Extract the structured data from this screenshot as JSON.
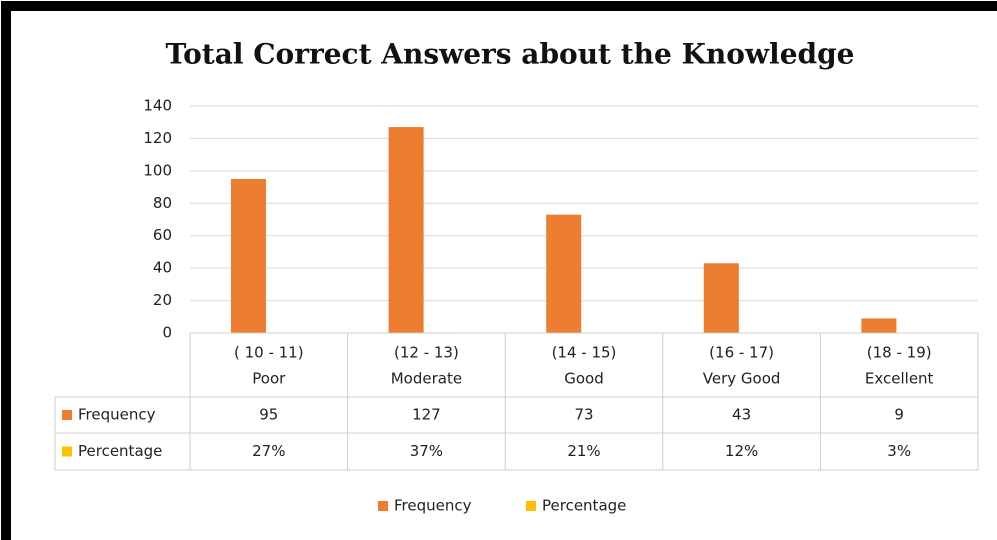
{
  "chart_data": {
    "type": "bar",
    "title": "Total Correct Answers about the Knowledge",
    "categories": [
      [
        "( 10 - 11)",
        "Poor"
      ],
      [
        "(12 - 13)",
        "Moderate"
      ],
      [
        "(14 - 15)",
        "Good"
      ],
      [
        "(16 - 17)",
        "Very Good"
      ],
      [
        "(18 - 19)",
        "Excellent"
      ]
    ],
    "series": [
      {
        "name": "Frequency",
        "color": "#ed7d31",
        "values": [
          95,
          127,
          73,
          43,
          9
        ]
      },
      {
        "name": "Percentage",
        "color": "#ffc000",
        "values": [
          0.27,
          0.37,
          0.21,
          0.12,
          0.03
        ],
        "value_labels": [
          "27%",
          "37%",
          "21%",
          "12%",
          "3%"
        ]
      }
    ],
    "ylim": [
      0,
      140
    ],
    "yticks": [
      0,
      20,
      40,
      60,
      80,
      100,
      120,
      140
    ],
    "grid": true,
    "legend": "bottom",
    "data_table": true
  }
}
